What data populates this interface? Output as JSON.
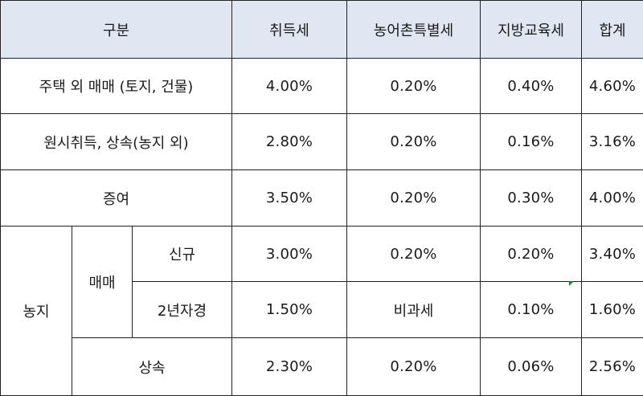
{
  "table": {
    "headers": {
      "category": "구분",
      "acquisition_tax": "취득세",
      "rural_special_tax": "농어촌특별세",
      "local_education_tax": "지방교육세",
      "total": "합계"
    },
    "rows": [
      {
        "label": "주택 외 매매 (토지, 건물)",
        "acquisition_tax": "4.00%",
        "rural_special_tax": "0.20%",
        "local_education_tax": "0.40%",
        "total": "4.60%"
      },
      {
        "label": "원시취득, 상속(농지 외)",
        "acquisition_tax": "2.80%",
        "rural_special_tax": "0.20%",
        "local_education_tax": "0.16%",
        "total": "3.16%"
      },
      {
        "label": "증여",
        "acquisition_tax": "3.50%",
        "rural_special_tax": "0.20%",
        "local_education_tax": "0.30%",
        "total": "4.00%"
      }
    ],
    "farmland": {
      "label": "농지",
      "trade": {
        "label": "매매",
        "new": {
          "label": "신규",
          "acquisition_tax": "3.00%",
          "rural_special_tax": "0.20%",
          "local_education_tax": "0.20%",
          "total": "3.40%"
        },
        "two_year": {
          "label": "2년자경",
          "acquisition_tax": "1.50%",
          "rural_special_tax": "비과세",
          "local_education_tax": "0.10%",
          "total": "1.60%"
        }
      },
      "inheritance": {
        "label": "상속",
        "acquisition_tax": "2.30%",
        "rural_special_tax": "0.20%",
        "local_education_tax": "0.06%",
        "total": "2.56%"
      }
    }
  },
  "colors": {
    "header_background": "#dfe8f2",
    "border": "#222222",
    "marker": "#1e7a2e"
  }
}
